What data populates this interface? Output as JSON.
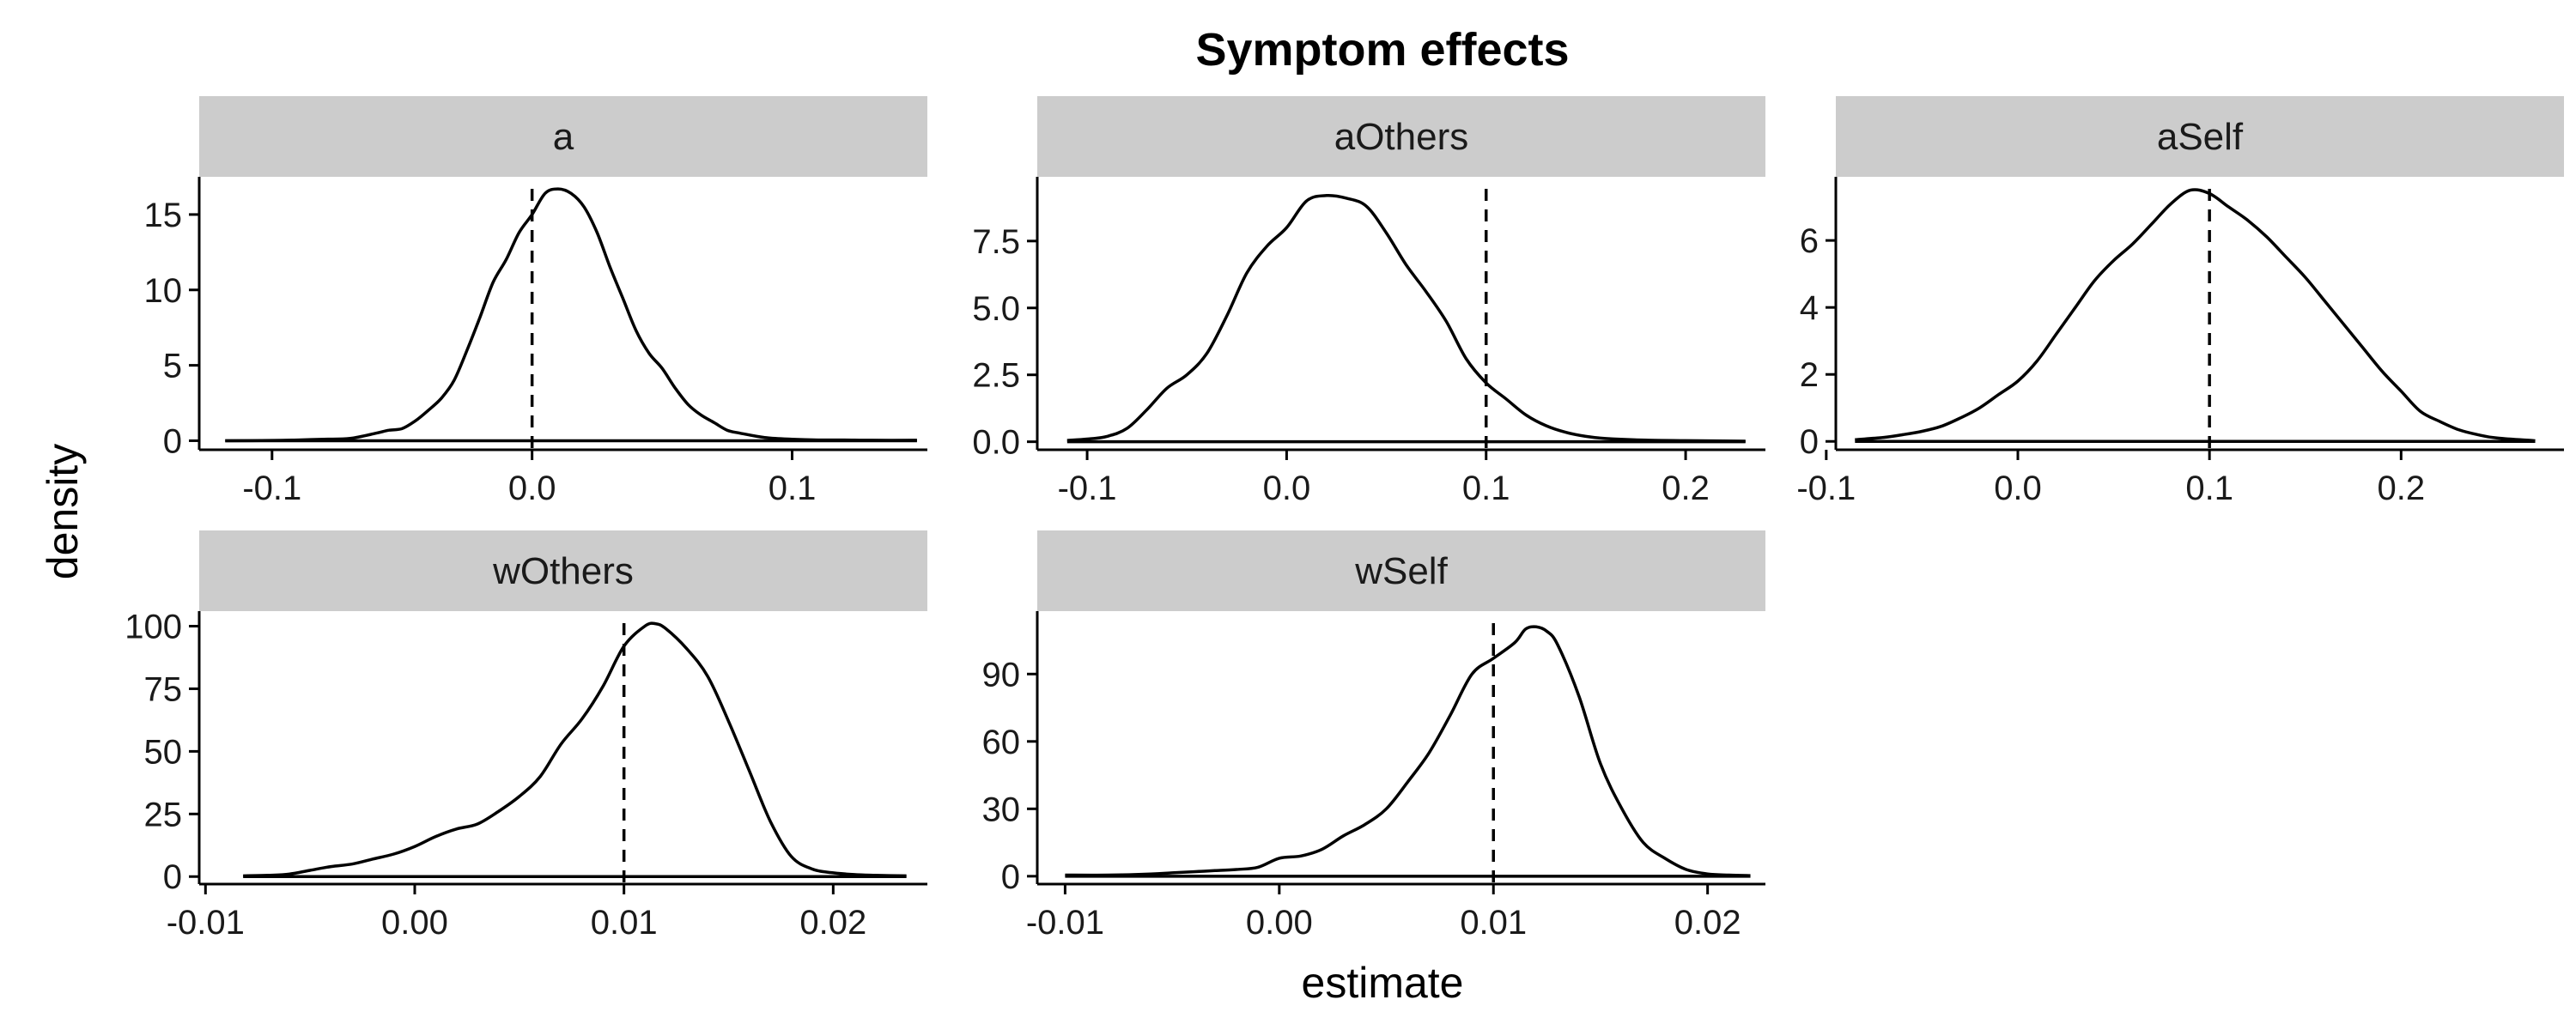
{
  "title": "Symptom effects",
  "xlabel": "estimate",
  "ylabel": "density",
  "colors": {
    "line": "#000000",
    "strip": "#cccccc",
    "background": "#ffffff"
  },
  "chart_data": [
    {
      "type": "line",
      "panel": "a",
      "xlim": [
        -0.128,
        0.152
      ],
      "ylim": [
        -0.6,
        17.5
      ],
      "xticks": [
        -0.1,
        0.0,
        0.1
      ],
      "xtick_labels": [
        "-0.1",
        "0.0",
        "0.1"
      ],
      "yticks": [
        0,
        5,
        10,
        15
      ],
      "ytick_labels": [
        "0",
        "5",
        "10",
        "15"
      ],
      "reference_line": 0.0,
      "x": [
        -0.118,
        -0.1,
        -0.09,
        -0.08,
        -0.07,
        -0.06,
        -0.055,
        -0.05,
        -0.045,
        -0.04,
        -0.035,
        -0.03,
        -0.025,
        -0.02,
        -0.015,
        -0.01,
        -0.005,
        0.0,
        0.005,
        0.01,
        0.015,
        0.02,
        0.025,
        0.03,
        0.035,
        0.04,
        0.045,
        0.05,
        0.055,
        0.06,
        0.065,
        0.07,
        0.075,
        0.08,
        0.09,
        0.1,
        0.11,
        0.12,
        0.13,
        0.148
      ],
      "y": [
        0.0,
        0.02,
        0.05,
        0.1,
        0.15,
        0.5,
        0.7,
        0.8,
        1.3,
        2.0,
        2.8,
        4.0,
        6.0,
        8.2,
        10.5,
        12.0,
        13.8,
        15.0,
        16.4,
        16.7,
        16.4,
        15.5,
        13.8,
        11.5,
        9.4,
        7.3,
        5.8,
        4.8,
        3.5,
        2.4,
        1.7,
        1.2,
        0.7,
        0.5,
        0.2,
        0.1,
        0.05,
        0.05,
        0.03,
        0.03
      ]
    },
    {
      "type": "line",
      "panel": "aOthers",
      "xlim": [
        -0.125,
        0.24
      ],
      "ylim": [
        -0.3,
        9.9
      ],
      "xticks": [
        -0.1,
        0.0,
        0.1,
        0.2
      ],
      "xtick_labels": [
        "-0.1",
        "0.0",
        "0.1",
        "0.2"
      ],
      "yticks": [
        0.0,
        2.5,
        5.0,
        7.5
      ],
      "ytick_labels": [
        "0.0",
        "2.5",
        "5.0",
        "7.5"
      ],
      "reference_line": 0.1,
      "x": [
        -0.11,
        -0.1,
        -0.09,
        -0.08,
        -0.07,
        -0.06,
        -0.05,
        -0.04,
        -0.03,
        -0.02,
        -0.01,
        0.0,
        0.01,
        0.02,
        0.03,
        0.04,
        0.05,
        0.06,
        0.07,
        0.08,
        0.09,
        0.1,
        0.11,
        0.12,
        0.13,
        0.14,
        0.15,
        0.16,
        0.18,
        0.2,
        0.23
      ],
      "y": [
        0.05,
        0.1,
        0.2,
        0.5,
        1.2,
        2.0,
        2.5,
        3.3,
        4.7,
        6.3,
        7.3,
        8.0,
        9.0,
        9.2,
        9.1,
        8.8,
        7.8,
        6.6,
        5.6,
        4.5,
        3.1,
        2.2,
        1.6,
        1.0,
        0.6,
        0.35,
        0.2,
        0.12,
        0.06,
        0.04,
        0.02
      ]
    },
    {
      "type": "line",
      "panel": "aSelf",
      "xlim": [
        -0.095,
        0.285
      ],
      "ylim": [
        -0.25,
        7.9
      ],
      "xticks": [
        -0.1,
        0.0,
        0.1,
        0.2
      ],
      "xtick_labels": [
        "-0.1",
        "0.0",
        "0.1",
        "0.2"
      ],
      "yticks": [
        0,
        2,
        4,
        6
      ],
      "ytick_labels": [
        "0",
        "2",
        "4",
        "6"
      ],
      "reference_line": 0.1,
      "x": [
        -0.085,
        -0.07,
        -0.06,
        -0.05,
        -0.04,
        -0.03,
        -0.02,
        -0.01,
        0.0,
        0.01,
        0.02,
        0.03,
        0.04,
        0.05,
        0.06,
        0.07,
        0.08,
        0.09,
        0.1,
        0.11,
        0.12,
        0.13,
        0.14,
        0.15,
        0.16,
        0.17,
        0.18,
        0.19,
        0.2,
        0.21,
        0.22,
        0.23,
        0.24,
        0.25,
        0.27
      ],
      "y": [
        0.05,
        0.12,
        0.2,
        0.3,
        0.45,
        0.7,
        1.0,
        1.4,
        1.8,
        2.4,
        3.2,
        4.0,
        4.8,
        5.4,
        5.9,
        6.5,
        7.1,
        7.5,
        7.4,
        7.0,
        6.6,
        6.1,
        5.5,
        4.9,
        4.2,
        3.5,
        2.8,
        2.1,
        1.5,
        0.9,
        0.6,
        0.35,
        0.2,
        0.1,
        0.02
      ]
    },
    {
      "type": "line",
      "panel": "wOthers",
      "xlim": [
        -0.0103,
        0.0245
      ],
      "ylim": [
        -3,
        106
      ],
      "xticks": [
        -0.01,
        0.0,
        0.01,
        0.02
      ],
      "xtick_labels": [
        "-0.01",
        "0.00",
        "0.01",
        "0.02"
      ],
      "yticks": [
        0,
        25,
        50,
        75,
        100
      ],
      "ytick_labels": [
        "0",
        "25",
        "50",
        "75",
        "100"
      ],
      "reference_line": 0.01,
      "x": [
        -0.0082,
        -0.007,
        -0.006,
        -0.005,
        -0.004,
        -0.003,
        -0.002,
        -0.001,
        0.0,
        0.001,
        0.002,
        0.003,
        0.004,
        0.005,
        0.006,
        0.007,
        0.008,
        0.009,
        0.01,
        0.011,
        0.0115,
        0.012,
        0.013,
        0.014,
        0.015,
        0.016,
        0.017,
        0.018,
        0.019,
        0.02,
        0.021,
        0.022,
        0.0235
      ],
      "y": [
        0.3,
        0.5,
        1.0,
        2.5,
        4.0,
        5.0,
        7.0,
        9.0,
        12.0,
        16.0,
        19.0,
        21.0,
        26.0,
        32.0,
        40.0,
        53.0,
        63.0,
        76.0,
        92.0,
        100.0,
        101.0,
        99.0,
        91.0,
        80.0,
        62.0,
        42.0,
        22.0,
        8.0,
        3.0,
        1.5,
        0.8,
        0.5,
        0.3
      ]
    },
    {
      "type": "line",
      "panel": "wSelf",
      "xlim": [
        -0.0113,
        0.0227
      ],
      "ylim": [
        -3.5,
        118
      ],
      "xticks": [
        -0.01,
        0.0,
        0.01,
        0.02
      ],
      "xtick_labels": [
        "-0.01",
        "0.00",
        "0.01",
        "0.02"
      ],
      "yticks": [
        0,
        30,
        60,
        90
      ],
      "ytick_labels": [
        "0",
        "30",
        "60",
        "90"
      ],
      "reference_line": 0.01,
      "x": [
        -0.01,
        -0.008,
        -0.006,
        -0.005,
        -0.004,
        -0.003,
        -0.002,
        -0.001,
        0.0,
        0.001,
        0.002,
        0.003,
        0.004,
        0.005,
        0.006,
        0.007,
        0.008,
        0.009,
        0.01,
        0.011,
        0.0115,
        0.012,
        0.0125,
        0.013,
        0.014,
        0.015,
        0.016,
        0.017,
        0.018,
        0.019,
        0.02,
        0.021,
        0.022
      ],
      "y": [
        0.5,
        0.5,
        1.0,
        1.5,
        2.0,
        2.5,
        3.0,
        4.0,
        8.0,
        9.0,
        12.0,
        18.0,
        23.0,
        30.0,
        42.0,
        55.0,
        72.0,
        90.0,
        97.0,
        104.0,
        110.0,
        111.0,
        109.0,
        103.0,
        80.0,
        50.0,
        30.0,
        15.0,
        8.0,
        3.0,
        1.0,
        0.5,
        0.3
      ]
    }
  ]
}
